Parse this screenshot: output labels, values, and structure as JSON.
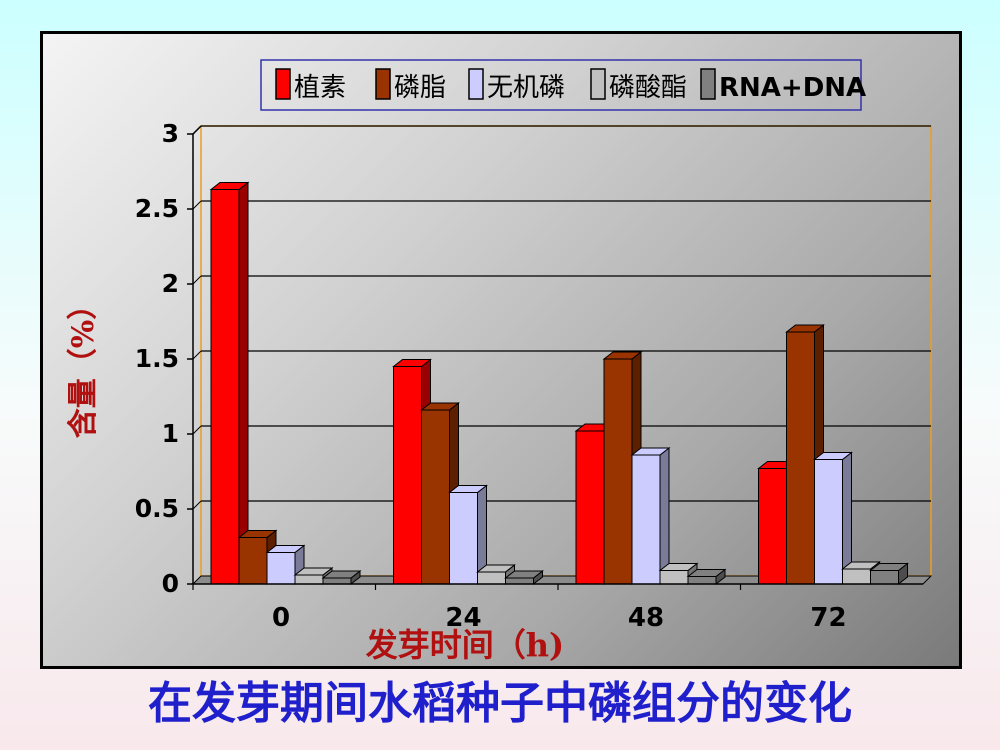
{
  "slide_title": "在发芽期间水稻种子中磷组分的变化",
  "chart_data": {
    "type": "bar",
    "title": "",
    "xlabel": "发芽时间（h)",
    "ylabel": "含量（%）",
    "categories": [
      "0",
      "24",
      "48",
      "72"
    ],
    "ylim": [
      0,
      3
    ],
    "yticks": [
      "0",
      "0.5",
      "1",
      "1.5",
      "2",
      "2.5",
      "3"
    ],
    "grid": true,
    "legend_position": "top",
    "series": [
      {
        "name": "植素",
        "values": [
          2.63,
          1.45,
          1.02,
          0.77
        ],
        "color": "#ff0000",
        "side_color": "#990000"
      },
      {
        "name": "磷脂",
        "values": [
          0.31,
          1.16,
          1.5,
          1.68
        ],
        "color": "#993300",
        "side_color": "#5c1f00"
      },
      {
        "name": "无机磷",
        "values": [
          0.21,
          0.61,
          0.86,
          0.83
        ],
        "color": "#ccccff",
        "side_color": "#7a7a99"
      },
      {
        "name": "磷酸酯",
        "values": [
          0.06,
          0.08,
          0.09,
          0.1
        ],
        "color": "#c0c0c0",
        "side_color": "#737373"
      },
      {
        "name": "RNA+DNA",
        "values": [
          0.04,
          0.04,
          0.05,
          0.09
        ],
        "color": "#808080",
        "side_color": "#4d4d4d"
      }
    ]
  }
}
